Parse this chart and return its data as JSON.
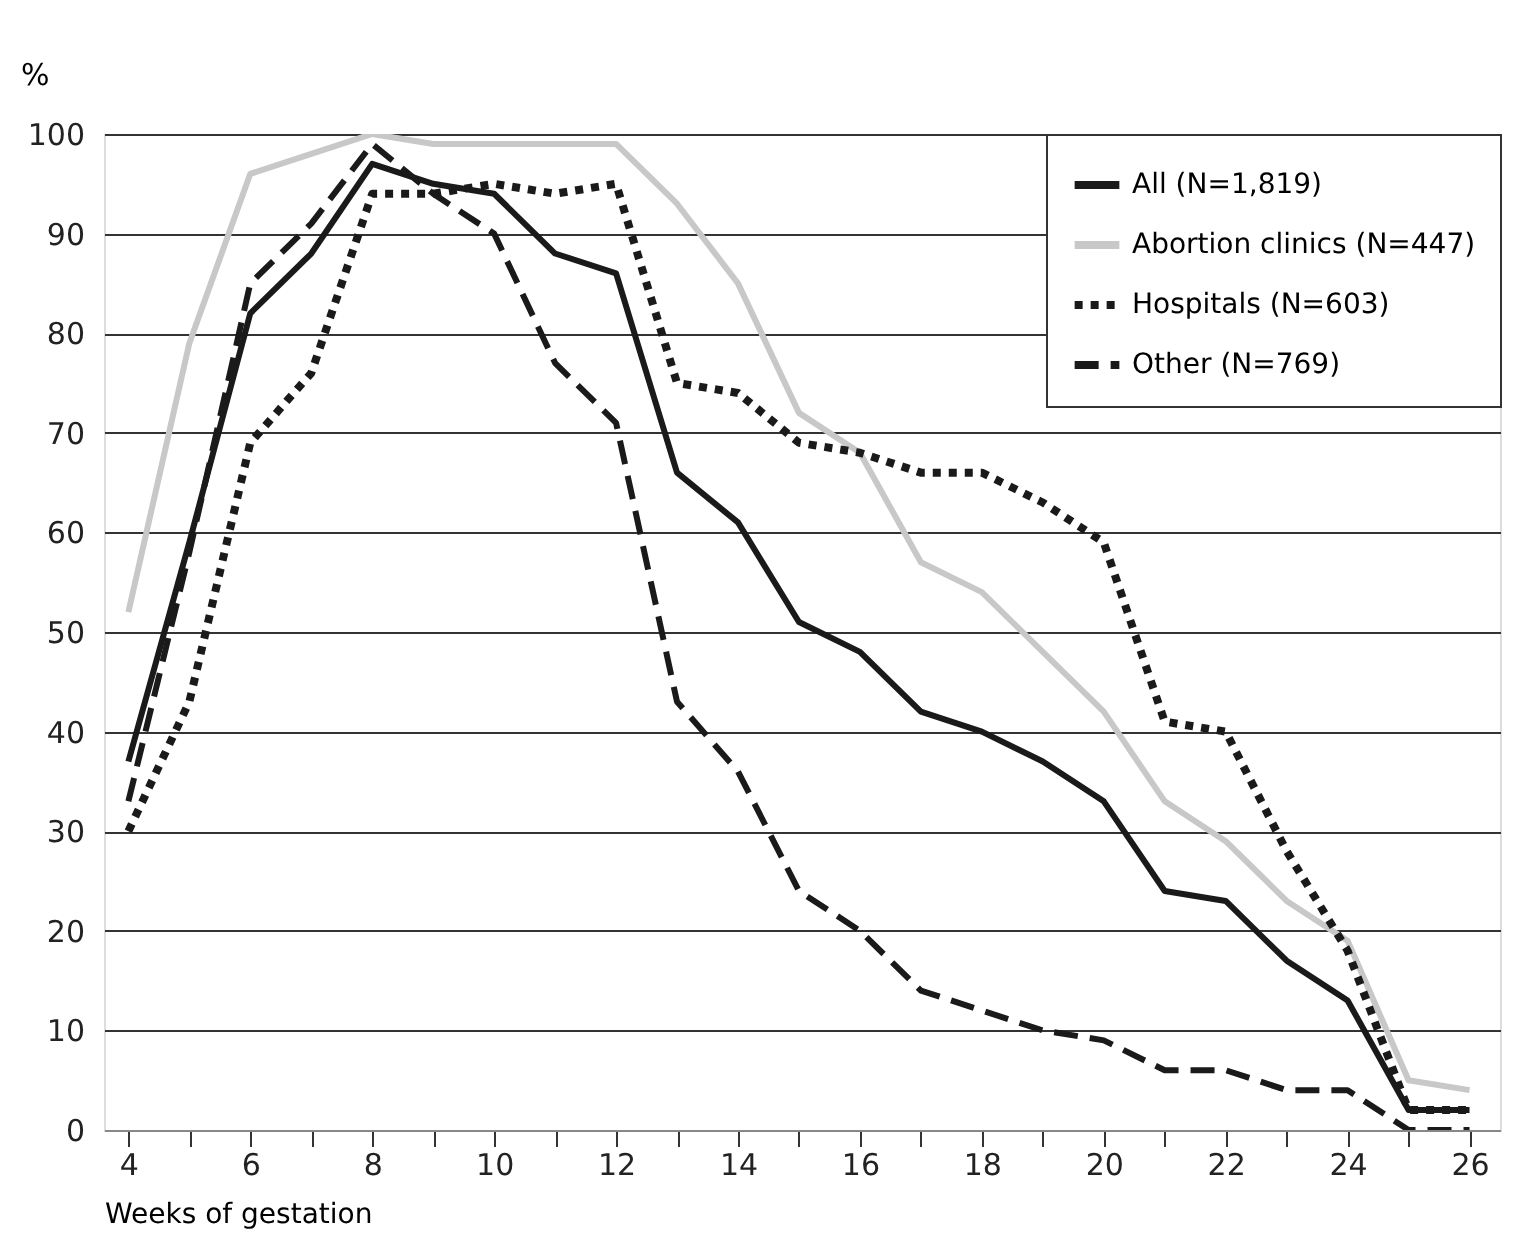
{
  "chart_data": {
    "type": "line",
    "xlabel": "Weeks of gestation",
    "ylabel": "%",
    "x": [
      4,
      5,
      6,
      7,
      8,
      9,
      10,
      11,
      12,
      13,
      14,
      15,
      16,
      17,
      18,
      19,
      20,
      21,
      22,
      23,
      24,
      25,
      26
    ],
    "series": [
      {
        "name": "All (N=1,819)",
        "color": "#1a1a1a",
        "line_style": "solid",
        "values": [
          37,
          59,
          82,
          88,
          97,
          95,
          94,
          88,
          86,
          66,
          61,
          51,
          48,
          42,
          40,
          37,
          33,
          24,
          23,
          17,
          13,
          2,
          2
        ]
      },
      {
        "name": "Abortion clinics (N=447)",
        "color": "#c8c8c8",
        "line_style": "solid",
        "values": [
          52,
          79,
          96,
          98,
          100,
          99,
          99,
          99,
          99,
          93,
          85,
          72,
          68,
          57,
          54,
          48,
          42,
          33,
          29,
          23,
          19,
          5,
          4
        ]
      },
      {
        "name": "Hospitals (N=603)",
        "color": "#1a1a1a",
        "line_style": "dotted",
        "values": [
          30,
          43,
          69,
          76,
          94,
          94,
          95,
          94,
          95,
          75,
          74,
          69,
          68,
          66,
          66,
          63,
          59,
          41,
          40,
          28,
          18,
          2,
          2
        ]
      },
      {
        "name": "Other (N=769)",
        "color": "#1a1a1a",
        "line_style": "dashed",
        "values": [
          33,
          58,
          85,
          91,
          99,
          94,
          90,
          77,
          71,
          43,
          36,
          24,
          20,
          14,
          12,
          10,
          9,
          6,
          6,
          4,
          4,
          0,
          0
        ]
      }
    ],
    "xlim": [
      3.6,
      26.5
    ],
    "ylim": [
      0,
      100
    ],
    "xticks": [
      4,
      {
        "value": 5,
        "label": null
      },
      6,
      {
        "value": 7,
        "label": null
      },
      8,
      {
        "value": 9,
        "label": null
      },
      10,
      {
        "value": 11,
        "label": null
      },
      12,
      {
        "value": 13,
        "label": null
      },
      14,
      {
        "value": 15,
        "label": null
      },
      16,
      {
        "value": 17,
        "label": null
      },
      18,
      {
        "value": 19,
        "label": null
      },
      20,
      {
        "value": 21,
        "label": null
      },
      22,
      {
        "value": 23,
        "label": null
      },
      24,
      {
        "value": 25,
        "label": null
      },
      26
    ],
    "yticks": [
      0,
      10,
      20,
      30,
      40,
      50,
      60,
      70,
      80,
      90,
      100
    ],
    "grid": "y",
    "legend": "top right"
  }
}
